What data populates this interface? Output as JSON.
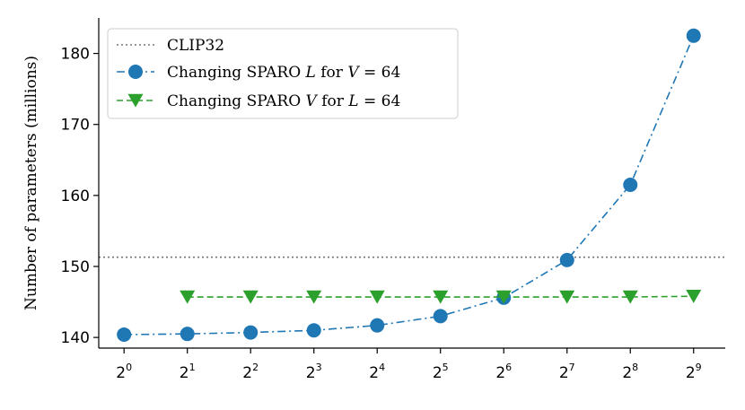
{
  "chart_data": {
    "type": "line",
    "ylabel": "Number of parameters (millions)",
    "xlabel": "",
    "x_base": "2",
    "x_exponents": [
      "0",
      "1",
      "2",
      "3",
      "4",
      "5",
      "6",
      "7",
      "8",
      "9"
    ],
    "y_ticks": [
      "140",
      "150",
      "160",
      "170",
      "180"
    ],
    "ylim": [
      138.5,
      185
    ],
    "xlim": [
      -0.4,
      9.5
    ],
    "grid": false,
    "legend_position": "top-left",
    "reference_line": {
      "name": "CLIP32",
      "value": 151.3,
      "color": "#777777",
      "style": "dotted"
    },
    "series": [
      {
        "name": "Changing SPARO L for V = 64",
        "legend": {
          "prefix": "Changing SPARO ",
          "var": "L",
          "middle": " for ",
          "var2": "V",
          "suffix": " = 64"
        },
        "color": "#1f77b4",
        "style": "dashdot",
        "marker": "circle",
        "x": [
          0,
          1,
          2,
          3,
          4,
          5,
          6,
          7,
          8,
          9
        ],
        "y": [
          140.4,
          140.5,
          140.7,
          141.0,
          141.7,
          143.0,
          145.6,
          150.9,
          161.5,
          182.5
        ]
      },
      {
        "name": "Changing SPARO V for L = 64",
        "legend": {
          "prefix": "Changing SPARO ",
          "var": "V",
          "middle": " for ",
          "var2": "L",
          "suffix": " = 64"
        },
        "color": "#2ca02c",
        "style": "dashed",
        "marker": "triangle-down",
        "x": [
          1,
          2,
          3,
          4,
          5,
          6,
          7,
          8,
          9
        ],
        "y": [
          145.7,
          145.7,
          145.7,
          145.7,
          145.7,
          145.7,
          145.7,
          145.7,
          145.8
        ]
      }
    ]
  }
}
